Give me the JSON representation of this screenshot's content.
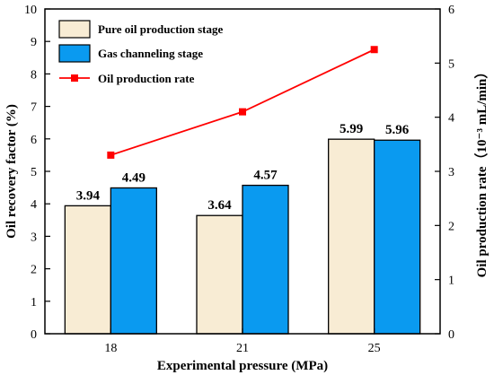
{
  "chart_data": {
    "type": "bar+line",
    "categories": [
      "18",
      "21",
      "25"
    ],
    "series": [
      {
        "name": "Pure oil production stage",
        "type": "bar",
        "axis": "left",
        "values": [
          3.94,
          3.64,
          5.99
        ],
        "labels": [
          "3.94",
          "3.64",
          "5.99"
        ],
        "color": "#f8ecd4"
      },
      {
        "name": "Gas channeling stage",
        "type": "bar",
        "axis": "left",
        "values": [
          4.49,
          4.57,
          5.96
        ],
        "labels": [
          "4.49",
          "4.57",
          "5.96"
        ],
        "color": "#0a9af0"
      },
      {
        "name": "Oil production rate",
        "type": "line",
        "axis": "right",
        "values": [
          3.3,
          4.1,
          5.25
        ],
        "color": "#ff0000"
      }
    ],
    "xlabel": "Experimental pressure (MPa)",
    "ylabel": "Oil recovery factor (%)",
    "y2label": "Oil production rate（10⁻³ mL/min）",
    "ylim": [
      0,
      10
    ],
    "y2lim": [
      0,
      6
    ],
    "yticks": [
      "0",
      "1",
      "2",
      "3",
      "4",
      "5",
      "6",
      "7",
      "8",
      "9",
      "10"
    ],
    "y2ticks": [
      "0",
      "1",
      "2",
      "3",
      "4",
      "5",
      "6"
    ],
    "grid": false,
    "legend_position": "top-left"
  }
}
